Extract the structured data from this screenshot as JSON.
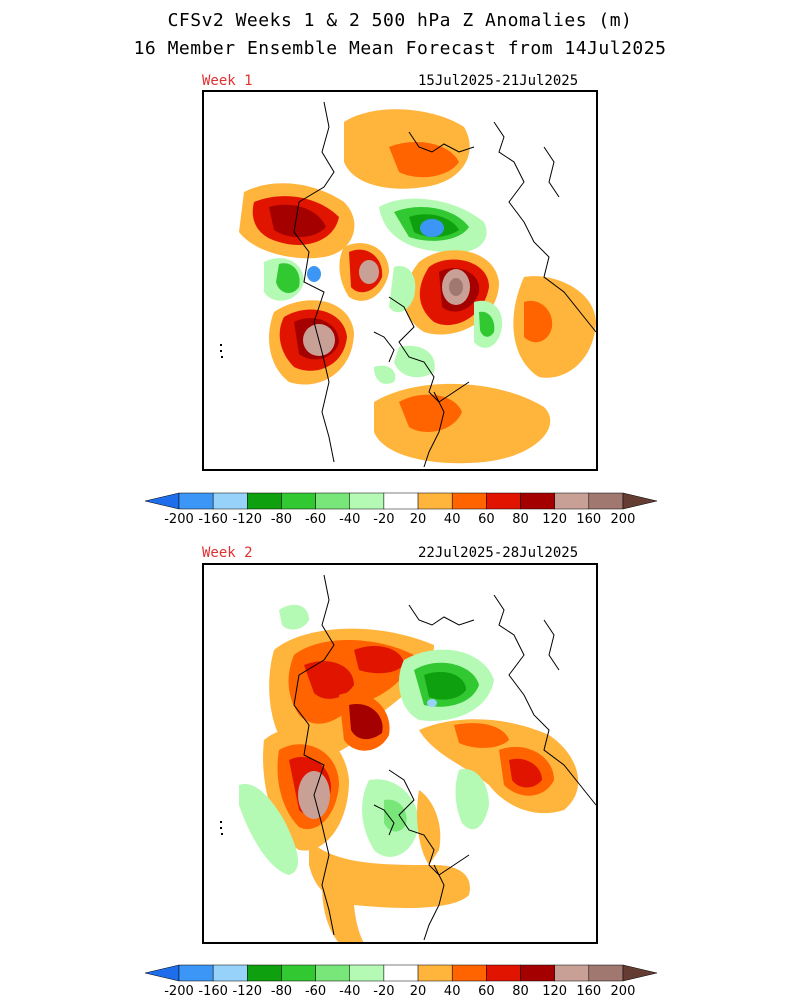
{
  "title": {
    "line1": "CFSv2 Weeks 1 & 2 500 hPa Z Anomalies (m)",
    "line2": "16 Member Ensemble Mean Forecast from 14Jul2025"
  },
  "panels": [
    {
      "week_label": "Week 1",
      "date_range": "15Jul2025-21Jul2025"
    },
    {
      "week_label": "Week 2",
      "date_range": "22Jul2025-28Jul2025"
    }
  ],
  "colorbar": {
    "levels": [
      "-200",
      "-160",
      "-120",
      "-80",
      "-60",
      "-40",
      "-20",
      "20",
      "40",
      "60",
      "80",
      "120",
      "160",
      "200"
    ],
    "colors": [
      "#1e6eeb",
      "#3c96f5",
      "#96d2fa",
      "#0fa00f",
      "#32c832",
      "#78e678",
      "#b4fab4",
      "#ffffff",
      "#ffb43c",
      "#ff6400",
      "#e11400",
      "#a50000",
      "#c8a096",
      "#a07870",
      "#643c32"
    ]
  },
  "colors": {
    "title_text": "#000000",
    "week_label": "#e03030"
  }
}
